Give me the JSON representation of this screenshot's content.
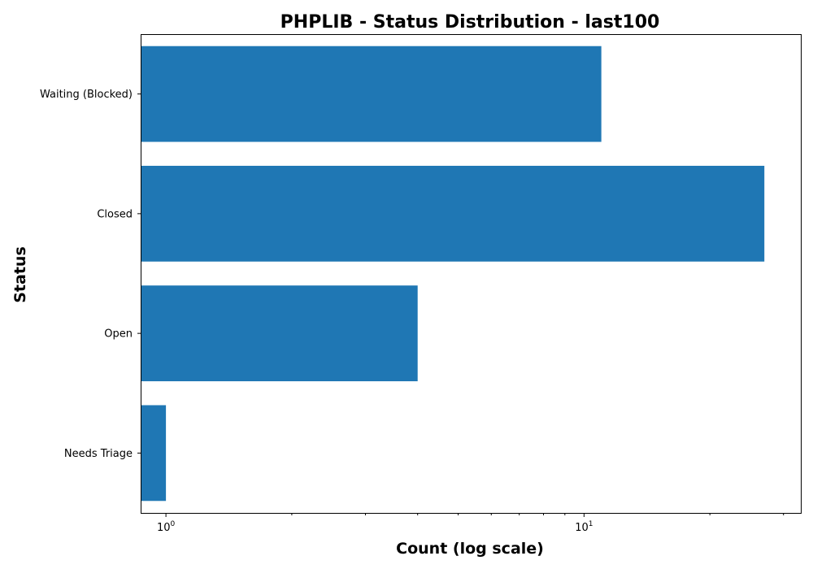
{
  "chart_data": {
    "type": "bar",
    "orientation": "horizontal",
    "title": "PHPLIB - Status Distribution - last100",
    "xlabel": "Count (log scale)",
    "ylabel": "Status",
    "xscale": "log",
    "xlim": [
      0.87,
      33
    ],
    "categories": [
      "Waiting (Blocked)",
      "Closed",
      "Open",
      "Needs Triage"
    ],
    "values": [
      11,
      27,
      4,
      1
    ],
    "xtick_major": [
      {
        "value": 1,
        "base": "10",
        "exp": "0"
      },
      {
        "value": 10,
        "base": "10",
        "exp": "1"
      }
    ],
    "xtick_minor": [
      2,
      3,
      4,
      5,
      6,
      7,
      8,
      9,
      20,
      30
    ],
    "bar_color": "#1f77b4",
    "grid": false,
    "legend": false
  }
}
